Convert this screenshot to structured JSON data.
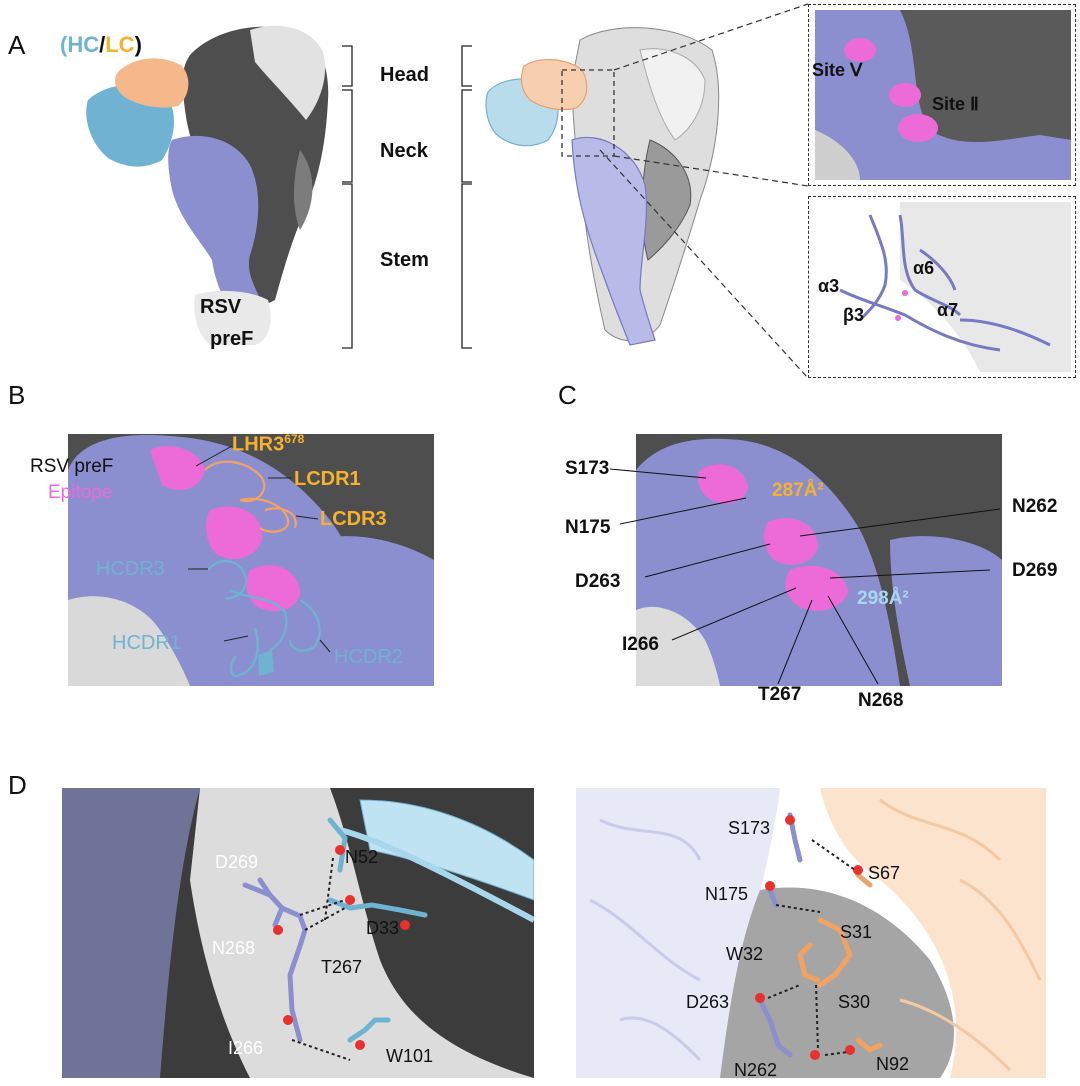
{
  "panels": {
    "A": {
      "letter": "A",
      "legend": {
        "open": "(",
        "hc": "HC",
        "slash": "/",
        "lc": "LC",
        "close": ")"
      },
      "rsv_line1": "RSV",
      "rsv_line2": "preF",
      "regions": [
        "Head",
        "Neck",
        "Stem"
      ],
      "inset_top": {
        "site5": "Site Ⅴ",
        "site2": "Site Ⅱ"
      },
      "inset_bottom": {
        "a3": "α3",
        "a6": "α6",
        "b3": "β3",
        "a7": "α7"
      }
    },
    "B": {
      "letter": "B",
      "rsv": "RSV preF",
      "epitope": "Epitope",
      "lhr3": "LHR3",
      "lhr3_sup": "678",
      "lcdr1": "LCDR1",
      "lcdr3": "LCDR3",
      "hcdr3": "HCDR3",
      "hcdr1": "HCDR1",
      "hcdr2": "HCDR2"
    },
    "C": {
      "letter": "C",
      "residues": [
        "S173",
        "N175",
        "D263",
        "I266",
        "T267",
        "N268",
        "N262",
        "D269"
      ],
      "area_lc": "287Å²",
      "area_hc": "298Å²"
    },
    "D": {
      "letter": "D",
      "left": [
        "N52",
        "D269",
        "D33",
        "N268",
        "T267",
        "I266",
        "W101"
      ],
      "right": [
        "S173",
        "S67",
        "N175",
        "S31",
        "W32",
        "D263",
        "S30",
        "N262",
        "N92"
      ]
    }
  },
  "colors": {
    "hc": "#6fb2d1",
    "lc": "#f6b22c",
    "light_chain_surface": "#f4b88a",
    "epitope": "#ec6bd8",
    "protomer_lilac": "#8b8fd0",
    "protomer_dark": "#5a5a5a",
    "protomer_light": "#e6e6e6"
  }
}
